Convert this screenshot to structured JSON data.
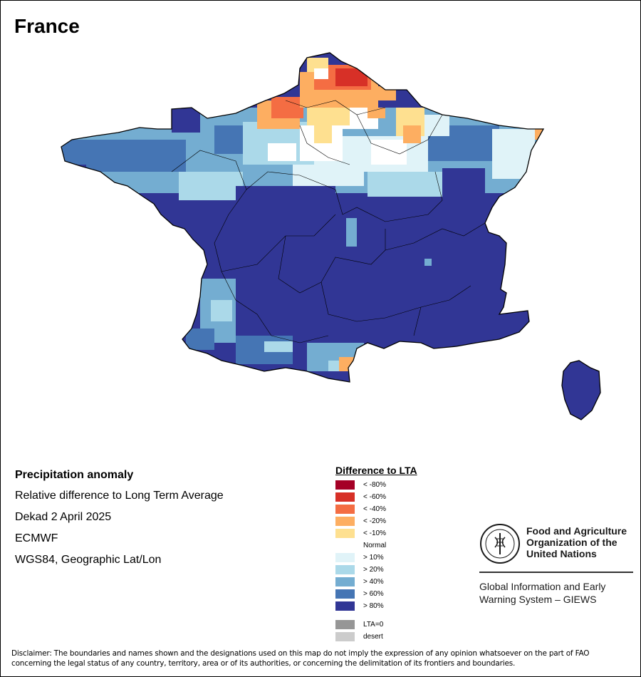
{
  "title": "France",
  "info": {
    "heading": "Precipitation anomaly",
    "lines": [
      "Relative difference to Long Term Average",
      "Dekad 2 April 2025",
      "ECMWF",
      "WGS84, Geographic Lat/Lon"
    ]
  },
  "legend": {
    "title": "Difference to LTA",
    "items": [
      {
        "label": "< -80%",
        "color": "#a50026"
      },
      {
        "label": "< -60%",
        "color": "#d73027"
      },
      {
        "label": "< -40%",
        "color": "#f46d43"
      },
      {
        "label": "< -20%",
        "color": "#fdae61"
      },
      {
        "label": "< -10%",
        "color": "#fee090"
      },
      {
        "label": "Normal",
        "color": "#ffffff"
      },
      {
        "label": "> 10%",
        "color": "#e0f3f8"
      },
      {
        "label": "> 20%",
        "color": "#abd9e9"
      },
      {
        "label": "> 40%",
        "color": "#74add1"
      },
      {
        "label": "> 60%",
        "color": "#4575b4"
      },
      {
        "label": "> 80%",
        "color": "#313695"
      }
    ],
    "extra": [
      {
        "label": "LTA=0",
        "color": "#969696"
      },
      {
        "label": "desert",
        "color": "#cccccc"
      }
    ]
  },
  "fao": {
    "name": "Food and Agriculture Organization of the United Nations",
    "program": "Global Information and Early Warning System – GIEWS"
  },
  "disclaimer": "Disclaimer: The boundaries and names shown and the designations used on this map do not imply the expression of any opinion whatsoever on the part of FAO concerning the legal status of any country, territory, area or of its authorities, or concerning the delimitation of its frontiers and boundaries.",
  "colors": {
    "dark_blue": "#313695",
    "mid_blue": "#4575b4",
    "light_blue": "#74add1",
    "pale_blue": "#abd9e9",
    "very_pale_blue": "#e0f3f8"
  }
}
